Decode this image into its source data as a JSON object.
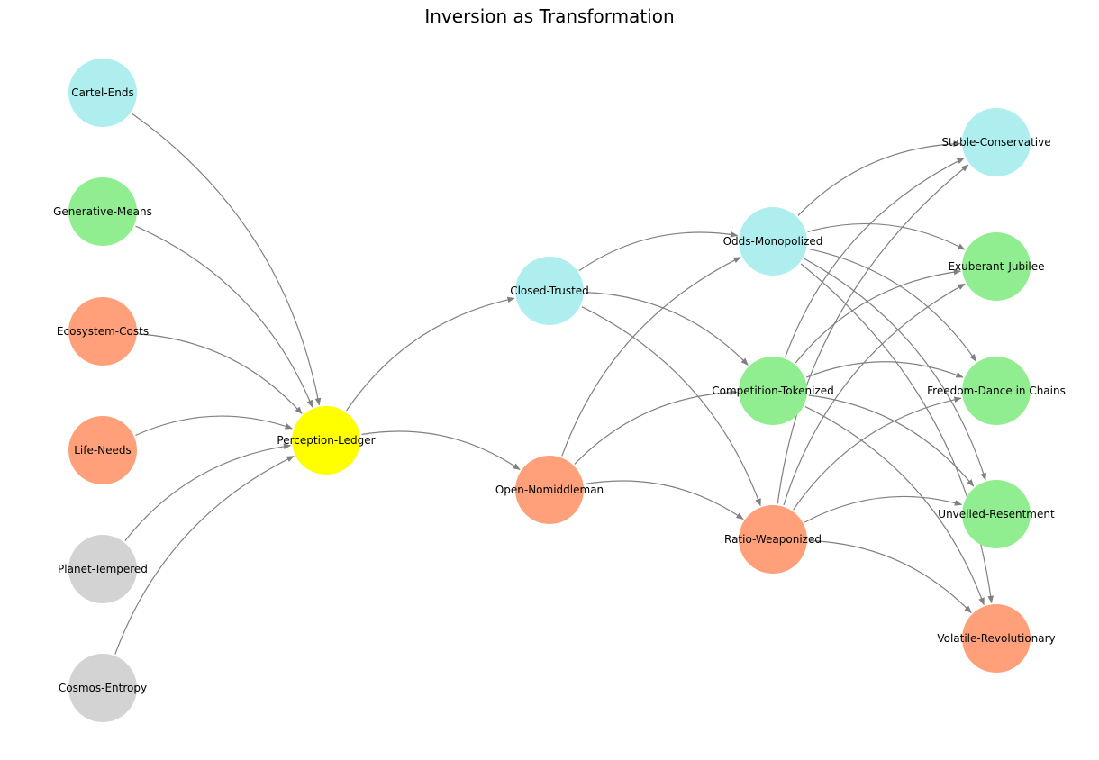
{
  "title": "Inversion as Transformation",
  "colors": {
    "gray": "#d3d3d3",
    "salmon": "#ffa07a",
    "green": "#90ee90",
    "cyan": "#afeeee",
    "yellow": "#ffff00",
    "edge": "#808080"
  },
  "nodes": [
    {
      "id": "cosmos",
      "label": "Cosmos-Entropy",
      "color": "gray"
    },
    {
      "id": "planet",
      "label": "Planet-Tempered",
      "color": "gray"
    },
    {
      "id": "life",
      "label": "Life-Needs",
      "color": "salmon"
    },
    {
      "id": "eco",
      "label": "Ecosystem-Costs",
      "color": "salmon"
    },
    {
      "id": "gen",
      "label": "Generative-Means",
      "color": "green"
    },
    {
      "id": "cartel",
      "label": "Cartel-Ends",
      "color": "cyan"
    },
    {
      "id": "perc",
      "label": "Perception-Ledger",
      "color": "yellow"
    },
    {
      "id": "open",
      "label": "Open-Nomiddleman",
      "color": "salmon"
    },
    {
      "id": "closed",
      "label": "Closed-Trusted",
      "color": "cyan"
    },
    {
      "id": "ratio",
      "label": "Ratio-Weaponized",
      "color": "salmon"
    },
    {
      "id": "comp",
      "label": "Competition-Tokenized",
      "color": "green"
    },
    {
      "id": "odds",
      "label": "Odds-Monopolized",
      "color": "cyan"
    },
    {
      "id": "volatile",
      "label": "Volatile-Revolutionary",
      "color": "salmon"
    },
    {
      "id": "unveiled",
      "label": "Unveiled-Resentment",
      "color": "green"
    },
    {
      "id": "freedom",
      "label": "Freedom-Dance in Chains",
      "color": "green"
    },
    {
      "id": "exuberant",
      "label": "Exuberant-Jubilee",
      "color": "green"
    },
    {
      "id": "stable",
      "label": "Stable-Conservative",
      "color": "cyan"
    }
  ],
  "edges": [
    [
      "cosmos",
      "perc"
    ],
    [
      "planet",
      "perc"
    ],
    [
      "life",
      "perc"
    ],
    [
      "eco",
      "perc"
    ],
    [
      "gen",
      "perc"
    ],
    [
      "cartel",
      "perc"
    ],
    [
      "perc",
      "open"
    ],
    [
      "perc",
      "closed"
    ],
    [
      "open",
      "ratio"
    ],
    [
      "open",
      "comp"
    ],
    [
      "open",
      "odds"
    ],
    [
      "closed",
      "ratio"
    ],
    [
      "closed",
      "comp"
    ],
    [
      "closed",
      "odds"
    ],
    [
      "ratio",
      "volatile"
    ],
    [
      "ratio",
      "unveiled"
    ],
    [
      "ratio",
      "freedom"
    ],
    [
      "ratio",
      "exuberant"
    ],
    [
      "ratio",
      "stable"
    ],
    [
      "comp",
      "volatile"
    ],
    [
      "comp",
      "unveiled"
    ],
    [
      "comp",
      "freedom"
    ],
    [
      "comp",
      "exuberant"
    ],
    [
      "comp",
      "stable"
    ],
    [
      "odds",
      "volatile"
    ],
    [
      "odds",
      "unveiled"
    ],
    [
      "odds",
      "freedom"
    ],
    [
      "odds",
      "exuberant"
    ],
    [
      "odds",
      "stable"
    ]
  ]
}
